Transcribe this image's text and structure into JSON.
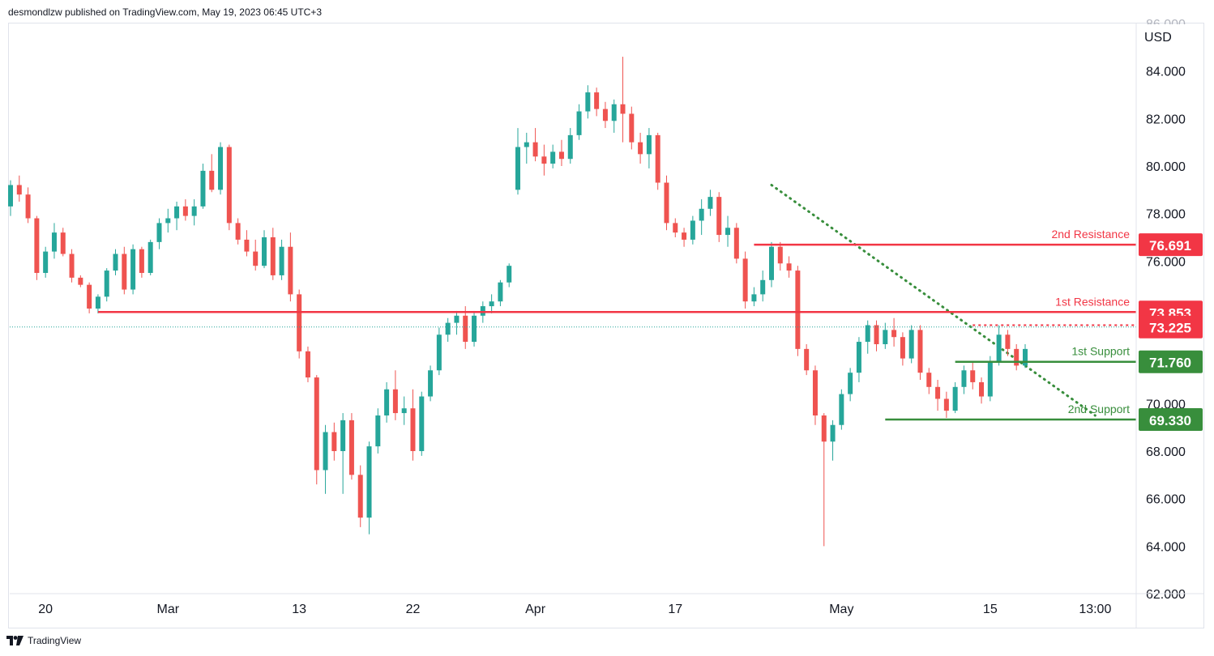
{
  "header": {
    "text": "desmondlzw published on TradingView.com, May 19, 2023 06:45 UTC+3"
  },
  "footer": {
    "brand": "TradingView"
  },
  "colors": {
    "up": "#26a69a",
    "down": "#ef5350",
    "resistance": "#f23645",
    "support": "#388e3c",
    "trend": "#388e3c"
  },
  "chart_data": {
    "type": "candlestick",
    "currency": "USD",
    "y_range": [
      62,
      86
    ],
    "y_ticks": [
      "62.000",
      "64.000",
      "66.000",
      "68.000",
      "70.000",
      "76.000",
      "78.000",
      "80.000",
      "82.000",
      "84.000",
      "86.000"
    ],
    "x_ticks": [
      "20",
      "Mar",
      "13",
      "22",
      "Apr",
      "17",
      "May",
      "15",
      "13:00"
    ],
    "x_tick_index": [
      4,
      18,
      33,
      46,
      60,
      76,
      95,
      112,
      124
    ],
    "levels": [
      {
        "label": "2nd Resistance",
        "value": 76.691,
        "value_text": "76.691",
        "start_index": 85,
        "kind": "resistance"
      },
      {
        "label": "1st Resistance",
        "value": 73.853,
        "value_text": "73.853",
        "start_index": 10,
        "kind": "resistance"
      },
      {
        "label": "1st Support",
        "value": 71.76,
        "value_text": "71.760",
        "start_index": 108,
        "kind": "support"
      },
      {
        "label": "2nd Support",
        "value": 69.33,
        "value_text": "69.330",
        "start_index": 100,
        "kind": "support"
      }
    ],
    "last_price": {
      "value": 73.225,
      "value_text": "73.225"
    },
    "recent_high": {
      "value": 73.3,
      "start_index": 110
    },
    "trendline": {
      "start": [
        87,
        79.2
      ],
      "end": [
        124,
        69.5
      ]
    },
    "ohlc": [
      [
        78.3,
        79.4,
        77.9,
        79.2
      ],
      [
        79.2,
        79.6,
        78.5,
        78.8
      ],
      [
        78.8,
        79.1,
        77.6,
        77.8
      ],
      [
        77.8,
        77.9,
        75.2,
        75.5
      ],
      [
        75.5,
        76.6,
        75.3,
        76.4
      ],
      [
        76.4,
        77.6,
        76.1,
        77.2
      ],
      [
        77.2,
        77.4,
        76.2,
        76.3
      ],
      [
        76.3,
        76.5,
        75.1,
        75.3
      ],
      [
        75.3,
        75.4,
        74.9,
        75.0
      ],
      [
        75.0,
        75.1,
        73.8,
        74.0
      ],
      [
        74.0,
        74.6,
        73.8,
        74.5
      ],
      [
        74.5,
        75.7,
        74.3,
        75.6
      ],
      [
        75.6,
        76.5,
        75.4,
        76.3
      ],
      [
        76.3,
        76.6,
        74.6,
        74.8
      ],
      [
        74.8,
        76.7,
        74.6,
        76.5
      ],
      [
        76.5,
        76.6,
        75.3,
        75.5
      ],
      [
        75.5,
        76.9,
        75.4,
        76.8
      ],
      [
        76.8,
        77.8,
        76.5,
        77.6
      ],
      [
        77.6,
        78.2,
        77.2,
        77.8
      ],
      [
        77.8,
        78.5,
        77.3,
        78.3
      ],
      [
        78.3,
        78.6,
        77.7,
        77.9
      ],
      [
        77.9,
        78.6,
        77.5,
        78.3
      ],
      [
        78.3,
        80.1,
        78.2,
        79.8
      ],
      [
        79.8,
        80.5,
        78.9,
        79.0
      ],
      [
        79.0,
        81.0,
        78.8,
        80.8
      ],
      [
        80.8,
        80.9,
        77.3,
        77.6
      ],
      [
        77.6,
        77.8,
        76.7,
        76.9
      ],
      [
        76.9,
        77.3,
        76.2,
        76.4
      ],
      [
        76.4,
        76.9,
        75.6,
        75.8
      ],
      [
        75.8,
        77.3,
        75.7,
        77.0
      ],
      [
        77.0,
        77.4,
        75.2,
        75.4
      ],
      [
        75.4,
        76.9,
        75.2,
        76.6
      ],
      [
        76.6,
        77.2,
        74.3,
        74.6
      ],
      [
        74.6,
        74.8,
        71.9,
        72.2
      ],
      [
        72.2,
        72.4,
        70.9,
        71.1
      ],
      [
        71.1,
        71.2,
        66.6,
        67.2
      ],
      [
        67.2,
        69.1,
        66.2,
        68.8
      ],
      [
        68.8,
        69.2,
        67.6,
        68.0
      ],
      [
        68.0,
        69.6,
        66.2,
        69.3
      ],
      [
        69.3,
        69.6,
        66.8,
        67.0
      ],
      [
        67.0,
        67.4,
        64.8,
        65.2
      ],
      [
        65.2,
        68.4,
        64.5,
        68.2
      ],
      [
        68.2,
        69.8,
        67.9,
        69.5
      ],
      [
        69.5,
        70.9,
        69.2,
        70.6
      ],
      [
        70.6,
        71.4,
        69.3,
        69.6
      ],
      [
        69.6,
        70.3,
        69.1,
        69.8
      ],
      [
        69.8,
        70.6,
        67.6,
        68.0
      ],
      [
        68.0,
        70.5,
        67.8,
        70.3
      ],
      [
        70.3,
        71.6,
        70.1,
        71.4
      ],
      [
        71.4,
        73.2,
        71.2,
        72.9
      ],
      [
        72.9,
        73.6,
        72.6,
        73.4
      ],
      [
        73.4,
        73.9,
        72.9,
        73.7
      ],
      [
        73.7,
        74.1,
        72.3,
        72.6
      ],
      [
        72.6,
        73.9,
        72.4,
        73.7
      ],
      [
        73.7,
        74.3,
        73.4,
        74.1
      ],
      [
        74.1,
        74.6,
        73.8,
        74.3
      ],
      [
        74.3,
        75.2,
        74.1,
        75.1
      ],
      [
        75.1,
        75.9,
        74.9,
        75.8
      ],
      [
        79.0,
        81.6,
        78.8,
        80.8
      ],
      [
        80.8,
        81.4,
        80.1,
        81.0
      ],
      [
        81.0,
        81.6,
        80.2,
        80.4
      ],
      [
        80.4,
        80.9,
        79.6,
        80.1
      ],
      [
        80.1,
        80.9,
        79.9,
        80.6
      ],
      [
        80.6,
        81.1,
        80.0,
        80.3
      ],
      [
        80.3,
        81.6,
        80.1,
        81.3
      ],
      [
        81.3,
        82.6,
        81.1,
        82.3
      ],
      [
        82.3,
        83.4,
        82.0,
        83.1
      ],
      [
        83.1,
        83.3,
        82.1,
        82.4
      ],
      [
        82.4,
        82.7,
        81.6,
        81.9
      ],
      [
        81.9,
        82.8,
        81.4,
        82.6
      ],
      [
        82.6,
        84.6,
        81.0,
        82.2
      ],
      [
        82.2,
        82.5,
        80.7,
        81.0
      ],
      [
        81.0,
        81.4,
        80.1,
        80.5
      ],
      [
        80.5,
        81.6,
        79.9,
        81.3
      ],
      [
        81.3,
        81.4,
        79.0,
        79.3
      ],
      [
        79.3,
        79.6,
        77.3,
        77.6
      ],
      [
        77.6,
        77.8,
        77.0,
        77.2
      ],
      [
        77.2,
        77.4,
        76.6,
        76.9
      ],
      [
        76.9,
        77.9,
        76.7,
        77.7
      ],
      [
        77.7,
        78.6,
        77.1,
        78.2
      ],
      [
        78.2,
        79.0,
        77.9,
        78.7
      ],
      [
        78.7,
        78.9,
        76.8,
        77.1
      ],
      [
        77.1,
        77.9,
        76.6,
        77.4
      ],
      [
        77.4,
        77.6,
        75.9,
        76.1
      ],
      [
        76.1,
        76.4,
        74.0,
        74.3
      ],
      [
        74.3,
        74.9,
        74.1,
        74.6
      ],
      [
        74.6,
        75.6,
        74.3,
        75.2
      ],
      [
        75.2,
        76.8,
        74.9,
        76.6
      ],
      [
        76.6,
        76.8,
        75.6,
        75.9
      ],
      [
        75.9,
        76.2,
        75.3,
        75.6
      ],
      [
        75.6,
        75.8,
        72.0,
        72.3
      ],
      [
        72.3,
        72.5,
        71.2,
        71.4
      ],
      [
        71.4,
        71.6,
        69.1,
        69.5
      ],
      [
        69.5,
        69.6,
        64.0,
        68.4
      ],
      [
        68.4,
        69.3,
        67.6,
        69.1
      ],
      [
        69.1,
        70.6,
        68.9,
        70.4
      ],
      [
        70.4,
        71.5,
        70.1,
        71.3
      ],
      [
        71.3,
        72.8,
        70.9,
        72.6
      ],
      [
        72.6,
        73.5,
        72.1,
        73.3
      ],
      [
        73.3,
        73.5,
        72.2,
        72.5
      ],
      [
        72.5,
        73.4,
        72.3,
        73.1
      ],
      [
        73.1,
        73.6,
        72.4,
        72.8
      ],
      [
        72.8,
        73.0,
        71.6,
        71.9
      ],
      [
        71.9,
        73.3,
        71.7,
        73.1
      ],
      [
        73.1,
        73.3,
        71.0,
        71.3
      ],
      [
        71.3,
        71.5,
        70.4,
        70.7
      ],
      [
        70.7,
        71.0,
        69.7,
        70.2
      ],
      [
        70.2,
        70.5,
        69.4,
        69.7
      ],
      [
        69.7,
        70.9,
        69.6,
        70.7
      ],
      [
        70.7,
        71.6,
        70.4,
        71.4
      ],
      [
        71.4,
        71.8,
        70.6,
        70.9
      ],
      [
        70.9,
        71.1,
        70.0,
        70.3
      ],
      [
        70.3,
        72.0,
        70.1,
        71.8
      ],
      [
        71.8,
        73.3,
        71.6,
        72.9
      ],
      [
        72.9,
        73.1,
        72.0,
        72.3
      ],
      [
        72.3,
        72.5,
        71.4,
        71.6
      ],
      [
        71.6,
        72.5,
        71.5,
        72.3
      ]
    ]
  }
}
